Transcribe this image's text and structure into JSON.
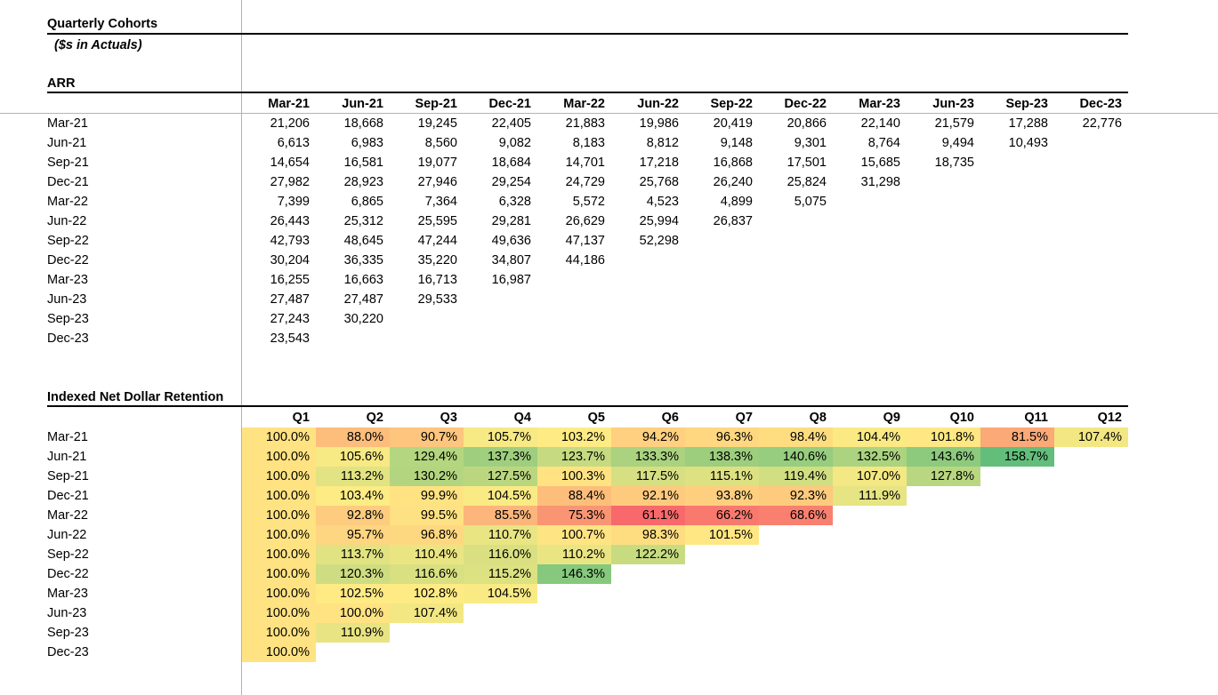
{
  "sheet": {
    "title": "Quarterly Cohorts",
    "subtitle": "($s in Actuals)"
  },
  "arr": {
    "section_title": "ARR",
    "columns": [
      "Mar-21",
      "Jun-21",
      "Sep-21",
      "Dec-21",
      "Mar-22",
      "Jun-22",
      "Sep-22",
      "Dec-22",
      "Mar-23",
      "Jun-23",
      "Sep-23",
      "Dec-23"
    ],
    "rows": [
      {
        "label": "Mar-21",
        "values": [
          "21,206",
          "18,668",
          "19,245",
          "22,405",
          "21,883",
          "19,986",
          "20,419",
          "20,866",
          "22,140",
          "21,579",
          "17,288",
          "22,776"
        ]
      },
      {
        "label": "Jun-21",
        "values": [
          "6,613",
          "6,983",
          "8,560",
          "9,082",
          "8,183",
          "8,812",
          "9,148",
          "9,301",
          "8,764",
          "9,494",
          "10,493"
        ]
      },
      {
        "label": "Sep-21",
        "values": [
          "14,654",
          "16,581",
          "19,077",
          "18,684",
          "14,701",
          "17,218",
          "16,868",
          "17,501",
          "15,685",
          "18,735"
        ]
      },
      {
        "label": "Dec-21",
        "values": [
          "27,982",
          "28,923",
          "27,946",
          "29,254",
          "24,729",
          "25,768",
          "26,240",
          "25,824",
          "31,298"
        ]
      },
      {
        "label": "Mar-22",
        "values": [
          "7,399",
          "6,865",
          "7,364",
          "6,328",
          "5,572",
          "4,523",
          "4,899",
          "5,075"
        ]
      },
      {
        "label": "Jun-22",
        "values": [
          "26,443",
          "25,312",
          "25,595",
          "29,281",
          "26,629",
          "25,994",
          "26,837"
        ]
      },
      {
        "label": "Sep-22",
        "values": [
          "42,793",
          "48,645",
          "47,244",
          "49,636",
          "47,137",
          "52,298"
        ]
      },
      {
        "label": "Dec-22",
        "values": [
          "30,204",
          "36,335",
          "35,220",
          "34,807",
          "44,186"
        ]
      },
      {
        "label": "Mar-23",
        "values": [
          "16,255",
          "16,663",
          "16,713",
          "16,987"
        ]
      },
      {
        "label": "Jun-23",
        "values": [
          "27,487",
          "27,487",
          "29,533"
        ]
      },
      {
        "label": "Sep-23",
        "values": [
          "27,243",
          "30,220"
        ]
      },
      {
        "label": "Dec-23",
        "values": [
          "23,543"
        ]
      }
    ]
  },
  "ndr": {
    "section_title": "Indexed Net Dollar Retention",
    "columns": [
      "Q1",
      "Q2",
      "Q3",
      "Q4",
      "Q5",
      "Q6",
      "Q7",
      "Q8",
      "Q9",
      "Q10",
      "Q11",
      "Q12"
    ],
    "color_scale": {
      "low": "#f8696b",
      "mid": "#ffeb84",
      "high": "#63be7b"
    },
    "rows": [
      {
        "label": "Mar-21",
        "values": [
          "100.0%",
          "88.0%",
          "90.7%",
          "105.7%",
          "103.2%",
          "94.2%",
          "96.3%",
          "98.4%",
          "104.4%",
          "101.8%",
          "81.5%",
          "107.4%"
        ]
      },
      {
        "label": "Jun-21",
        "values": [
          "100.0%",
          "105.6%",
          "129.4%",
          "137.3%",
          "123.7%",
          "133.3%",
          "138.3%",
          "140.6%",
          "132.5%",
          "143.6%",
          "158.7%"
        ]
      },
      {
        "label": "Sep-21",
        "values": [
          "100.0%",
          "113.2%",
          "130.2%",
          "127.5%",
          "100.3%",
          "117.5%",
          "115.1%",
          "119.4%",
          "107.0%",
          "127.8%"
        ]
      },
      {
        "label": "Dec-21",
        "values": [
          "100.0%",
          "103.4%",
          "99.9%",
          "104.5%",
          "88.4%",
          "92.1%",
          "93.8%",
          "92.3%",
          "111.9%"
        ]
      },
      {
        "label": "Mar-22",
        "values": [
          "100.0%",
          "92.8%",
          "99.5%",
          "85.5%",
          "75.3%",
          "61.1%",
          "66.2%",
          "68.6%"
        ]
      },
      {
        "label": "Jun-22",
        "values": [
          "100.0%",
          "95.7%",
          "96.8%",
          "110.7%",
          "100.7%",
          "98.3%",
          "101.5%"
        ]
      },
      {
        "label": "Sep-22",
        "values": [
          "100.0%",
          "113.7%",
          "110.4%",
          "116.0%",
          "110.2%",
          "122.2%"
        ]
      },
      {
        "label": "Dec-22",
        "values": [
          "100.0%",
          "120.3%",
          "116.6%",
          "115.2%",
          "146.3%"
        ]
      },
      {
        "label": "Mar-23",
        "values": [
          "100.0%",
          "102.5%",
          "102.8%",
          "104.5%"
        ]
      },
      {
        "label": "Jun-23",
        "values": [
          "100.0%",
          "100.0%",
          "107.4%"
        ]
      },
      {
        "label": "Sep-23",
        "values": [
          "100.0%",
          "110.9%"
        ]
      },
      {
        "label": "Dec-23",
        "values": [
          "100.0%"
        ]
      }
    ]
  }
}
